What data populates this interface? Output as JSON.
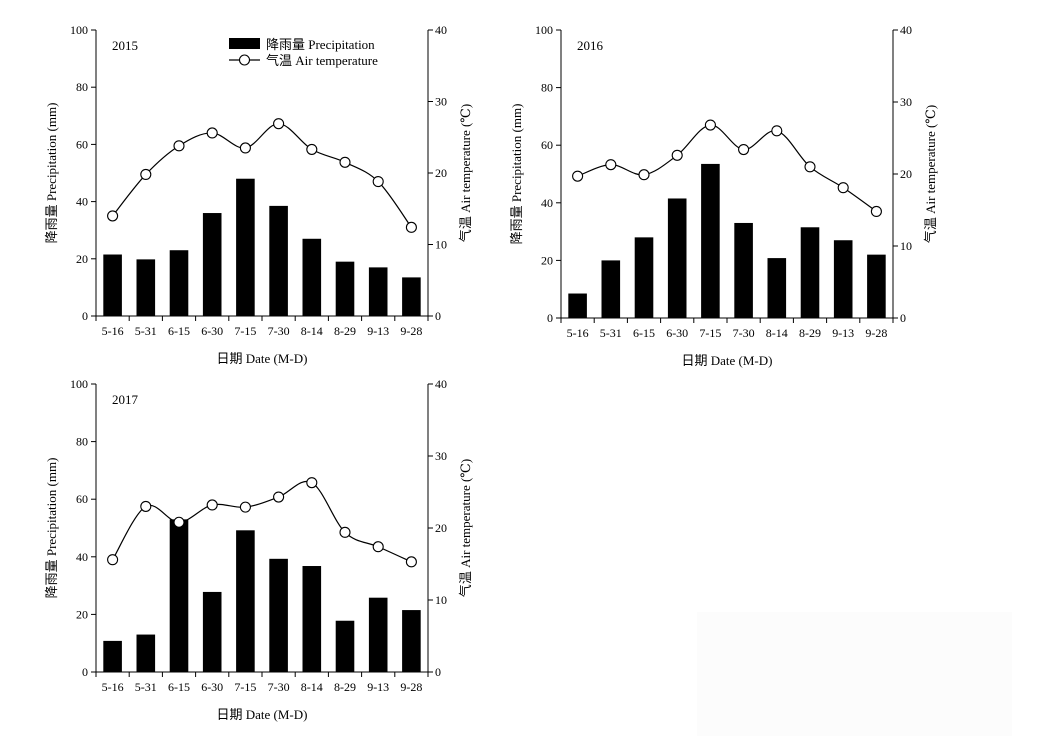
{
  "figure": {
    "legend": {
      "precipitation_label": "降雨量 Precipitation",
      "temperature_label": "气温 Air temperature"
    }
  },
  "chart_data": [
    {
      "type": "bar",
      "year_label": "2015",
      "categories": [
        "5-16",
        "5-31",
        "6-15",
        "6-30",
        "7-15",
        "7-30",
        "8-14",
        "8-29",
        "9-13",
        "9-28"
      ],
      "series": [
        {
          "name": "降雨量 Precipitation",
          "type": "bar",
          "axis": "left",
          "values": [
            21.5,
            19.8,
            23,
            36,
            48,
            38.5,
            27,
            19,
            17,
            13.5
          ]
        },
        {
          "name": "气温 Air temperature",
          "type": "line",
          "axis": "right",
          "values": [
            14,
            19.8,
            23.8,
            25.6,
            23.5,
            26.9,
            23.3,
            21.5,
            18.8,
            12.4
          ]
        }
      ],
      "xlabel": "日期 Date (M-D)",
      "ylabel": "降雨量 Precipitation (mm)",
      "y2label": "气温 Air temperature (℃)",
      "ylim": [
        0,
        100
      ],
      "y2lim": [
        0,
        40
      ],
      "yticks": [
        0,
        20,
        40,
        60,
        80,
        100
      ],
      "y2ticks": [
        0,
        10,
        20,
        30,
        40
      ],
      "legend_position": "top-center",
      "grid": false
    },
    {
      "type": "bar",
      "year_label": "2016",
      "categories": [
        "5-16",
        "5-31",
        "6-15",
        "6-30",
        "7-15",
        "7-30",
        "8-14",
        "8-29",
        "9-13",
        "9-28"
      ],
      "series": [
        {
          "name": "降雨量 Precipitation",
          "type": "bar",
          "axis": "left",
          "values": [
            8.5,
            20,
            28,
            41.5,
            53.5,
            33,
            20.8,
            31.5,
            27,
            22
          ]
        },
        {
          "name": "气温 Air temperature",
          "type": "line",
          "axis": "right",
          "values": [
            19.7,
            21.3,
            19.9,
            22.6,
            26.8,
            23.4,
            26,
            21,
            18.1,
            14.8
          ]
        }
      ],
      "xlabel": "日期 Date (M-D)",
      "ylabel": "降雨量 Precipitation (mm)",
      "y2label": "气温 Air temperature (℃)",
      "ylim": [
        0,
        100
      ],
      "y2lim": [
        0,
        40
      ],
      "yticks": [
        0,
        20,
        40,
        60,
        80,
        100
      ],
      "y2ticks": [
        0,
        10,
        20,
        30,
        40
      ],
      "grid": false
    },
    {
      "type": "bar",
      "year_label": "2017",
      "categories": [
        "5-16",
        "5-31",
        "6-15",
        "6-30",
        "7-15",
        "7-30",
        "8-14",
        "8-29",
        "9-13",
        "9-28"
      ],
      "series": [
        {
          "name": "降雨量 Precipitation",
          "type": "bar",
          "axis": "left",
          "values": [
            10.8,
            13,
            53,
            27.8,
            49.2,
            39.3,
            36.8,
            17.8,
            25.8,
            21.5
          ]
        },
        {
          "name": "气温 Air temperature",
          "type": "line",
          "axis": "right",
          "values": [
            15.6,
            23,
            20.8,
            23.2,
            22.9,
            24.3,
            26.3,
            19.4,
            17.4,
            15.3
          ]
        }
      ],
      "xlabel": "日期 Date (M-D)",
      "ylabel": "降雨量 Precipitation (mm)",
      "y2label": "气温 Air temperature (℃)",
      "ylim": [
        0,
        100
      ],
      "y2lim": [
        0,
        40
      ],
      "yticks": [
        0,
        20,
        40,
        60,
        80,
        100
      ],
      "y2ticks": [
        0,
        10,
        20,
        30,
        40
      ],
      "grid": false
    }
  ]
}
